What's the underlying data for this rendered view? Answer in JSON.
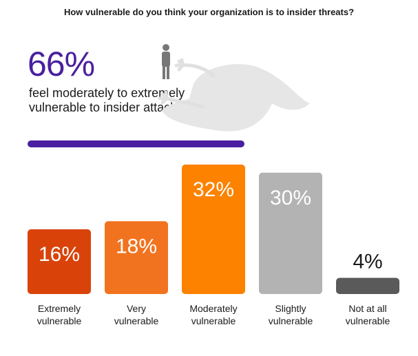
{
  "title": "How vulnerable do you think your organization is to insider threats?",
  "callout": {
    "value": "66%",
    "caption": "feel moderately to extremely vulnerable to insider attacks"
  },
  "chart_data": {
    "type": "bar",
    "categories": [
      [
        "Extremely",
        "vulnerable"
      ],
      [
        "Very",
        "vulnerable"
      ],
      [
        "Moderately",
        "vulnerable"
      ],
      [
        "Slightly",
        "vulnerable"
      ],
      [
        "Not at all",
        "vulnerable"
      ]
    ],
    "values": [
      16,
      18,
      32,
      30,
      4
    ],
    "value_labels": [
      "16%",
      "18%",
      "32%",
      "30%",
      "4%"
    ],
    "colors": [
      "#d9430a",
      "#f2731f",
      "#fc8200",
      "#b3b3b3",
      "#5a5a5a"
    ],
    "ylim": [
      0,
      32
    ],
    "grid": false,
    "legend": "none"
  }
}
